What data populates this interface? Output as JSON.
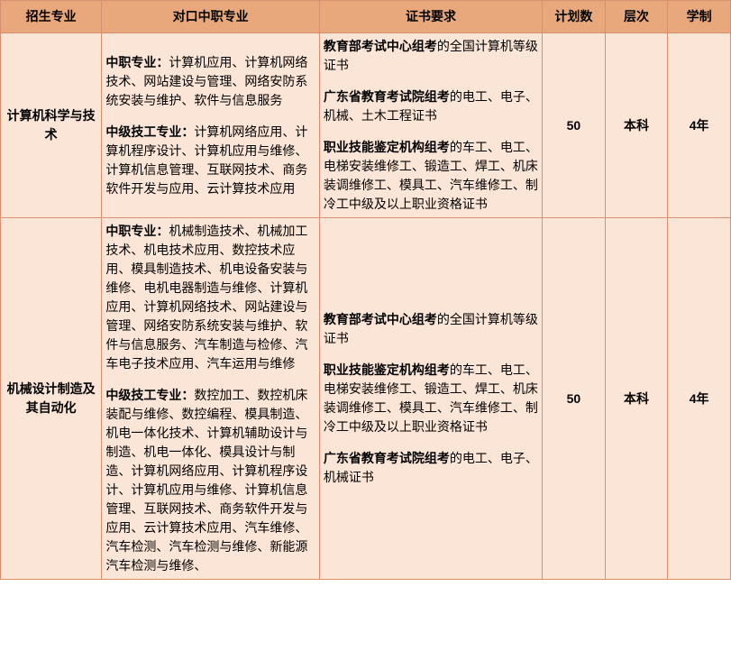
{
  "columns": {
    "c1": "招生专业",
    "c2": "对口中职专业",
    "c3": "证书要求",
    "c4": "计划数",
    "c5": "层次",
    "c6": "学制"
  },
  "rows": [
    {
      "major": "计算机科学与技术",
      "zhongzhi": [
        {
          "lead": "中职专业：",
          "text": "计算机应用、计算机网络技术、网站建设与管理、网络安防系统安装与维护、软件与信息服务"
        },
        {
          "lead": "中级技工专业：",
          "text": "计算机网络应用、计算机程序设计、计算机应用与维修、计算机信息管理、互联网技术、商务软件开发与应用、云计算技术应用"
        }
      ],
      "cert": [
        {
          "lead": "教育部考试中心组考",
          "text": "的全国计算机等级证书"
        },
        {
          "lead": "广东省教育考试院组考",
          "text": "的电工、电子、机械、土木工程证书"
        },
        {
          "lead": "职业技能鉴定机构组考",
          "text": "的车工、电工、电梯安装维修工、锻造工、焊工、机床装调维修工、模具工、汽车维修工、制冷工中级及以上职业资格证书"
        }
      ],
      "plan": "50",
      "level": "本科",
      "duration": "4年"
    },
    {
      "major": "机械设计制造及其自动化",
      "zhongzhi": [
        {
          "lead": "中职专业：",
          "text": "机械制造技术、机械加工技术、机电技术应用、数控技术应用、模具制造技术、机电设备安装与维修、电机电器制造与维修、计算机应用、计算机网络技术、网站建设与管理、网络安防系统安装与维护、软件与信息服务、汽车制造与检修、汽车电子技术应用、汽车运用与维修"
        },
        {
          "lead": "中级技工专业：",
          "text": "数控加工、数控机床装配与维修、数控编程、模具制造、机电一体化技术、计算机辅助设计与制造、机电一体化、模具设计与制造、计算机网络应用、计算机程序设计、计算机应用与维修、计算机信息管理、互联网技术、商务软件开发与应用、云计算技术应用、汽车维修、汽车检测、汽车检测与维修、新能源汽车检测与维修、"
        }
      ],
      "cert": [
        {
          "lead": "教育部考试中心组考",
          "text": "的全国计算机等级证书"
        },
        {
          "lead": "职业技能鉴定机构组考",
          "text": "的车工、电工、电梯安装维修工、锻造工、焊工、机床装调维修工、模具工、汽车维修工、制冷工中级及以上职业资格证书"
        },
        {
          "lead": "广东省教育考试院组考",
          "text": "的电工、电子、机械证书"
        }
      ],
      "plan": "50",
      "level": "本科",
      "duration": "4年"
    }
  ]
}
